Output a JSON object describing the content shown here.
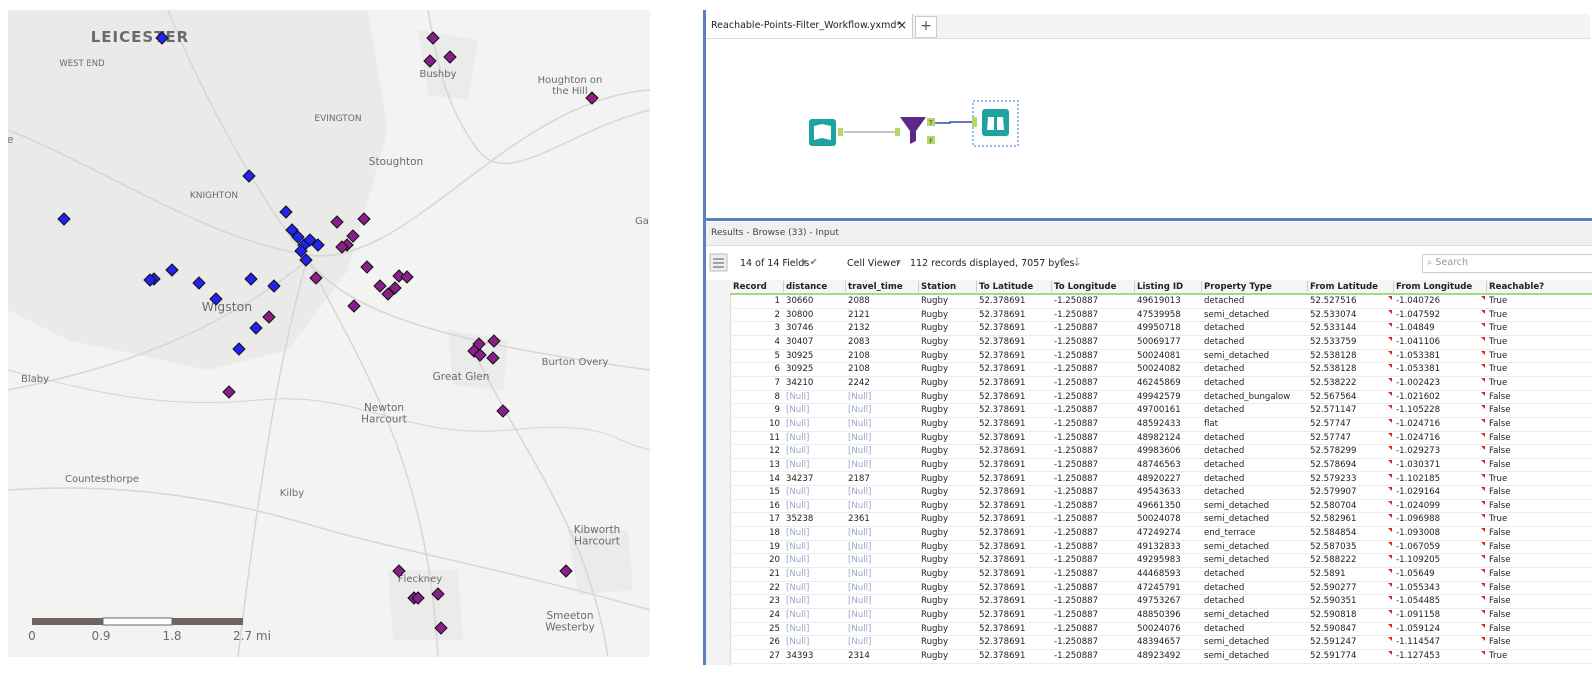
{
  "map": {
    "labels": [
      [
        "LEICESTER"
      ],
      [
        "WEST END"
      ],
      [
        "Bushby"
      ],
      [
        "Houghton on",
        "the Hill"
      ],
      [
        "EVINGTON"
      ],
      [
        "Stoughton"
      ],
      [
        "KNIGHTON"
      ],
      [
        "Wigston"
      ],
      [
        "Blaby"
      ],
      [
        "Great Glen"
      ],
      [
        "Burton Overy"
      ],
      [
        "Newton",
        "Harcourt"
      ],
      [
        "Countesthorpe"
      ],
      [
        "Kilby"
      ],
      [
        "Kibworth",
        "Harcourt"
      ],
      [
        "Fleckney"
      ],
      [
        "Smeeton",
        "Westerby"
      ],
      [
        "e"
      ],
      [
        "Ga"
      ]
    ],
    "scale": [
      "0",
      "0.9",
      "1.8",
      "2.7 mi"
    ]
  },
  "workflow": {
    "tab": "Reachable-Points-Filter_Workflow.yxmd*",
    "close": "×",
    "new_tab": "+",
    "filter_anchors": [
      "T",
      "F"
    ]
  },
  "results": {
    "title": "Results - Browse (33) - Input",
    "fields": "14 of 14 Fields",
    "viewer": "Cell Viewer",
    "summary": "112 records displayed, 7057 bytes",
    "search": "Search"
  },
  "table": {
    "columns": [
      "Record",
      "distance",
      "travel_time",
      "Station",
      "To Latitude",
      "To Longitude",
      "Listing ID",
      "Property Type",
      "From Latitude",
      "From Longitude",
      "Reachable?"
    ],
    "rows": [
      [
        "1",
        "30660",
        "2088",
        "Rugby",
        "52.378691",
        "-1.250887",
        "49619013",
        "detached",
        "52.527516",
        "-1.040726",
        "True"
      ],
      [
        "2",
        "30800",
        "2121",
        "Rugby",
        "52.378691",
        "-1.250887",
        "47539958",
        "semi_detached",
        "52.533074",
        "-1.047592",
        "True"
      ],
      [
        "3",
        "30746",
        "2132",
        "Rugby",
        "52.378691",
        "-1.250887",
        "49950718",
        "detached",
        "52.533144",
        "-1.04849",
        "True"
      ],
      [
        "4",
        "30407",
        "2083",
        "Rugby",
        "52.378691",
        "-1.250887",
        "50069177",
        "detached",
        "52.533759",
        "-1.041106",
        "True"
      ],
      [
        "5",
        "30925",
        "2108",
        "Rugby",
        "52.378691",
        "-1.250887",
        "50024081",
        "semi_detached",
        "52.538128",
        "-1.053381",
        "True"
      ],
      [
        "6",
        "30925",
        "2108",
        "Rugby",
        "52.378691",
        "-1.250887",
        "50024082",
        "detached",
        "52.538128",
        "-1.053381",
        "True"
      ],
      [
        "7",
        "34210",
        "2242",
        "Rugby",
        "52.378691",
        "-1.250887",
        "46245869",
        "detached",
        "52.538222",
        "-1.002423",
        "True"
      ],
      [
        "8",
        "[Null]",
        "[Null]",
        "Rugby",
        "52.378691",
        "-1.250887",
        "49942579",
        "detached_bungalow",
        "52.567564",
        "-1.021602",
        "False"
      ],
      [
        "9",
        "[Null]",
        "[Null]",
        "Rugby",
        "52.378691",
        "-1.250887",
        "49700161",
        "detached",
        "52.571147",
        "-1.105228",
        "False"
      ],
      [
        "10",
        "[Null]",
        "[Null]",
        "Rugby",
        "52.378691",
        "-1.250887",
        "48592433",
        "flat",
        "52.57747",
        "-1.024716",
        "False"
      ],
      [
        "11",
        "[Null]",
        "[Null]",
        "Rugby",
        "52.378691",
        "-1.250887",
        "48982124",
        "detached",
        "52.57747",
        "-1.024716",
        "False"
      ],
      [
        "12",
        "[Null]",
        "[Null]",
        "Rugby",
        "52.378691",
        "-1.250887",
        "49983606",
        "detached",
        "52.578299",
        "-1.029273",
        "False"
      ],
      [
        "13",
        "[Null]",
        "[Null]",
        "Rugby",
        "52.378691",
        "-1.250887",
        "48746563",
        "detached",
        "52.578694",
        "-1.030371",
        "False"
      ],
      [
        "14",
        "34237",
        "2187",
        "Rugby",
        "52.378691",
        "-1.250887",
        "48920227",
        "detached",
        "52.579233",
        "-1.102185",
        "True"
      ],
      [
        "15",
        "[Null]",
        "[Null]",
        "Rugby",
        "52.378691",
        "-1.250887",
        "49543633",
        "detached",
        "52.579907",
        "-1.029164",
        "False"
      ],
      [
        "16",
        "[Null]",
        "[Null]",
        "Rugby",
        "52.378691",
        "-1.250887",
        "49661350",
        "semi_detached",
        "52.580704",
        "-1.024099",
        "False"
      ],
      [
        "17",
        "35238",
        "2361",
        "Rugby",
        "52.378691",
        "-1.250887",
        "50024078",
        "semi_detached",
        "52.582961",
        "-1.096988",
        "True"
      ],
      [
        "18",
        "[Null]",
        "[Null]",
        "Rugby",
        "52.378691",
        "-1.250887",
        "47249274",
        "end_terrace",
        "52.584854",
        "-1.093008",
        "False"
      ],
      [
        "19",
        "[Null]",
        "[Null]",
        "Rugby",
        "52.378691",
        "-1.250887",
        "49132833",
        "semi_detached",
        "52.587035",
        "-1.067059",
        "False"
      ],
      [
        "20",
        "[Null]",
        "[Null]",
        "Rugby",
        "52.378691",
        "-1.250887",
        "49295983",
        "semi_detached",
        "52.588222",
        "-1.109205",
        "False"
      ],
      [
        "21",
        "[Null]",
        "[Null]",
        "Rugby",
        "52.378691",
        "-1.250887",
        "44468593",
        "detached",
        "52.5891",
        "-1.05649",
        "False"
      ],
      [
        "22",
        "[Null]",
        "[Null]",
        "Rugby",
        "52.378691",
        "-1.250887",
        "47245791",
        "detached",
        "52.590277",
        "-1.055343",
        "False"
      ],
      [
        "23",
        "[Null]",
        "[Null]",
        "Rugby",
        "52.378691",
        "-1.250887",
        "49753267",
        "detached",
        "52.590351",
        "-1.054485",
        "False"
      ],
      [
        "24",
        "[Null]",
        "[Null]",
        "Rugby",
        "52.378691",
        "-1.250887",
        "48850396",
        "semi_detached",
        "52.590818",
        "-1.091158",
        "False"
      ],
      [
        "25",
        "[Null]",
        "[Null]",
        "Rugby",
        "52.378691",
        "-1.250887",
        "50024076",
        "detached",
        "52.590847",
        "-1.059124",
        "False"
      ],
      [
        "26",
        "[Null]",
        "[Null]",
        "Rugby",
        "52.378691",
        "-1.250887",
        "48394657",
        "semi_detached",
        "52.591247",
        "-1.114547",
        "False"
      ],
      [
        "27",
        "34393",
        "2314",
        "Rugby",
        "52.378691",
        "-1.250887",
        "48923492",
        "semi_detached",
        "52.591774",
        "-1.127453",
        "True"
      ]
    ]
  }
}
